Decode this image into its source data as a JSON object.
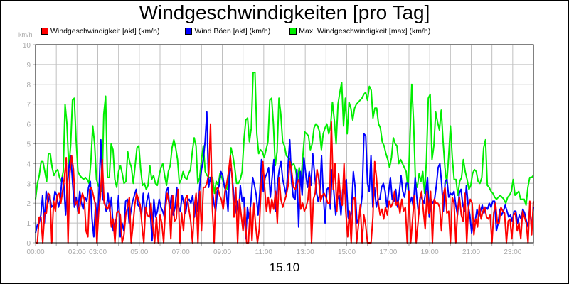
{
  "header": {
    "title": "Windgeschwindigkeiten [pro Tag]",
    "y_unit": "km/h"
  },
  "legend": [
    {
      "label": "Windgeschwindigkeit [akt] (km/h)",
      "color": "#ff0000"
    },
    {
      "label": "Wind Böen [akt] (km/h)",
      "color": "#0000ff"
    },
    {
      "label": "Max. Windgeschwindigkeit [max] (km/h)",
      "color": "#00ee00"
    }
  ],
  "footer": {
    "date_label": "15.10"
  },
  "chart_data": {
    "type": "line",
    "title": "Windgeschwindigkeiten [pro Tag]",
    "xlabel": "15.10",
    "ylabel": "km/h",
    "ylim": [
      0,
      10
    ],
    "xlim_hours": [
      0,
      24
    ],
    "grid": true,
    "legend_position": "top",
    "y_ticks": [
      "0",
      "1",
      "2",
      "3",
      "4",
      "5",
      "6",
      "7",
      "8",
      "9",
      "10"
    ],
    "x_tick_labels": [
      {
        "hour": 0,
        "label": "00:00"
      },
      {
        "hour": 2,
        "label": "02:00"
      },
      {
        "hour": 3,
        "label": "03:00"
      },
      {
        "hour": 5,
        "label": "05:00"
      },
      {
        "hour": 7,
        "label": "07:00"
      },
      {
        "hour": 9,
        "label": "09:00"
      },
      {
        "hour": 11,
        "label": "11:00"
      },
      {
        "hour": 13,
        "label": "13:00"
      },
      {
        "hour": 15,
        "label": "15:00"
      },
      {
        "hour": 17,
        "label": "17:00"
      },
      {
        "hour": 19,
        "label": "19:00"
      },
      {
        "hour": 21,
        "label": "21:00"
      },
      {
        "hour": 23,
        "label": "23:00"
      }
    ],
    "x_step_hours": 0.25,
    "series": [
      {
        "name": "Max. Windgeschwindigkeit [max] (km/h)",
        "color": "#00ee00",
        "values": [
          2.2,
          3.0,
          3.4,
          4.1,
          4.1,
          3.6,
          3.1,
          4.5,
          4.5,
          3.8,
          3.4,
          3.6,
          3.7,
          3.3,
          3.1,
          3.6,
          7.0,
          6.0,
          3.8,
          4.9,
          7.2,
          7.3,
          5.2,
          3.6,
          3.4,
          3.3,
          3.2,
          3.3,
          3.2,
          3.0,
          4.1,
          5.9,
          5.0,
          3.2,
          2.9,
          2.7,
          2.6,
          6.5,
          7.4,
          3.3,
          3.3,
          5.0,
          4.7,
          3.2,
          2.8,
          3.6,
          3.9,
          3.5,
          3.0,
          3.1,
          4.6,
          4.1,
          3.8,
          3.0,
          3.9,
          4.8,
          4.9,
          3.7,
          2.9,
          3.0,
          2.7,
          2.9,
          3.9,
          3.2,
          3.4,
          3.0,
          2.9,
          3.4,
          3.8,
          4.0,
          3.4,
          2.9,
          3.6,
          3.9,
          4.8,
          5.2,
          4.8,
          4.2,
          3.0,
          3.2,
          3.6,
          3.3,
          3.2,
          3.5,
          3.7,
          4.6,
          5.3,
          4.9,
          3.0,
          3.3,
          4.2,
          4.9,
          3.6,
          3.4,
          3.3,
          3.3,
          3.3,
          2.5,
          3.1,
          2.9,
          3.5,
          3.3,
          3.0,
          2.9,
          2.7,
          3.6,
          4.8,
          4.4,
          3.8,
          3.0,
          3.0,
          3.2,
          3.6,
          5.2,
          6.2,
          6.3,
          5.1,
          5.8,
          8.6,
          8.6,
          5.5,
          4.5,
          4.7,
          4.6,
          4.3,
          4.7,
          5.1,
          7.2,
          7.3,
          6.0,
          3.9,
          4.6,
          7.3,
          6.5,
          5.1,
          4.9,
          4.4,
          4.3,
          4.2,
          3.9,
          4.0,
          3.7,
          3.1,
          3.8,
          3.2,
          4.4,
          5.6,
          5.5,
          5.4,
          4.7,
          5.0,
          5.8,
          6.0,
          5.9,
          5.6,
          4.7,
          5.5,
          5.8,
          6.0,
          5.5,
          5.9,
          7.1,
          6.2,
          5.0,
          7.0,
          7.6,
          8.1,
          5.9,
          7.3,
          5.5,
          7.1,
          6.8,
          6.2,
          6.8,
          7.0,
          7.1,
          7.2,
          7.3,
          7.5,
          7.6,
          7.2,
          7.9,
          7.7,
          6.3,
          6.8,
          6.8,
          6.0,
          5.8,
          5.1,
          4.9,
          4.5,
          4.2,
          3.8,
          4.3,
          5.3,
          5.0,
          4.9,
          4.0,
          4.2,
          4.0,
          3.8,
          3.6,
          2.7,
          5.2,
          8.0,
          6.1,
          3.1,
          2.8,
          3.5,
          3.1,
          3.6,
          2.5,
          4.2,
          7.3,
          7.5,
          4.2,
          4.9,
          6.6,
          6.1,
          5.7,
          6.7,
          5.1,
          3.8,
          3.0,
          4.3,
          5.9,
          4.3,
          3.2,
          3.2,
          2.4,
          3.1,
          3.3,
          4.2,
          3.6,
          3.2,
          2.7,
          2.9,
          3.5,
          3.7,
          3.6,
          3.1,
          3.0,
          3.3,
          4.8,
          5.2,
          2.9,
          2.8,
          2.6,
          2.5,
          2.3,
          2.2,
          2.3,
          2.4,
          2.3,
          2.2,
          2.0,
          2.3,
          2.4,
          2.6,
          3.2,
          2.4,
          2.5,
          2.6,
          2.2,
          2.2,
          2.2,
          1.9,
          2.8,
          3.3,
          3.3,
          3.4
        ]
      },
      {
        "name": "Wind Böen [akt] (km/h)",
        "color": "#0000ff",
        "values": [
          0.5,
          0.9,
          1.0,
          1.4,
          2.4,
          1.0,
          2.6,
          2.0,
          2.4,
          1.8,
          1.9,
          2.6,
          2.4,
          1.8,
          2.2,
          3.3,
          3.0,
          1.4,
          2.9,
          3.9,
          4.4,
          3.0,
          1.8,
          2.3,
          1.6,
          2.6,
          2.0,
          1.7,
          2.3,
          2.1,
          2.8,
          3.1,
          1.2,
          0.3,
          2.0,
          0.8,
          2.8,
          5.2,
          2.2,
          2.1,
          1.6,
          2.5,
          1.6,
          2.3,
          0.6,
          1.0,
          1.3,
          2.4,
          0.3,
          1.0,
          0.6,
          2.1,
          2.2,
          1.0,
          1.6,
          2.1,
          2.4,
          2.7,
          1.9,
          1.8,
          1.4,
          2.5,
          1.3,
          2.1,
          2.5,
          1.6,
          0.1,
          2.2,
          1.3,
          1.6,
          2.2,
          1.8,
          1.6,
          1.3,
          2.6,
          2.8,
          1.7,
          2.4,
          1.4,
          1.8,
          2.8,
          1.8,
          1.6,
          2.4,
          2.0,
          1.5,
          2.1,
          2.2,
          2.0,
          2.4,
          1.3,
          2.3,
          1.6,
          2.9,
          3.7,
          4.2,
          5.1,
          6.6,
          2.8,
          3.3,
          2.8,
          2.0,
          1.6,
          2.6,
          2.9,
          3.6,
          3.4,
          2.8,
          2.6,
          1.6,
          3.8,
          3.6,
          2.7,
          1.5,
          2.1,
          1.4,
          2.9,
          2.1,
          2.3,
          0.2,
          1.8,
          1.2,
          2.1,
          3.3,
          2.9,
          2.4,
          1.4,
          2.5,
          4.2,
          2.6,
          3.3,
          3.5,
          3.8,
          2.3,
          3.3,
          4.2,
          1.6,
          3.0,
          3.7,
          4.1,
          3.2,
          2.8,
          2.4,
          3.9,
          5.2,
          3.1,
          2.3,
          2.2,
          3.7,
          0.8,
          3.6,
          2.4,
          4.3,
          3.5,
          2.8,
          3.6,
          2.9,
          4.5,
          3.5,
          2.6,
          2.1,
          2.5,
          4.4,
          2.4,
          1.0,
          2.7,
          2.8,
          1.7,
          3.7,
          2.5,
          1.4,
          2.2,
          2.4,
          1.4,
          2.7,
          2.5,
          3.2,
          1.3,
          1.0,
          1.7,
          3.6,
          2.8,
          1.0,
          1.2,
          1.6,
          2.4,
          5.5,
          5.4,
          3.0,
          2.6,
          4.4,
          1.8,
          2.8,
          1.8,
          2.2,
          2.2,
          2.8,
          3.0,
          2.6,
          1.8,
          2.6,
          3.3,
          2.2,
          2.1,
          2.7,
          1.8,
          2.5,
          3.4,
          2.6,
          2.3,
          3.0,
          3.0,
          2.0,
          2.3,
          1.8,
          3.3,
          2.2,
          1.4,
          2.4,
          2.2,
          2.0,
          2.6,
          3.3,
          1.3,
          2.2,
          2.0,
          2.2,
          2.9,
          3.8,
          4.0,
          3.0,
          1.6,
          3.1,
          3.2,
          2.3,
          2.5,
          2.4,
          2.6,
          1.9,
          1.4,
          2.5,
          2.7,
          1.9,
          1.6,
          2.9,
          1.9,
          1.4,
          0.5,
          1.1,
          1.1,
          1.7,
          1.3,
          1.6,
          1.9,
          1.5,
          1.8,
          1.7,
          2.0,
          1.8,
          2.1,
          2.1,
          0.6,
          1.0,
          1.7,
          1.4,
          1.6,
          1.9,
          1.6,
          1.3,
          1.4,
          1.1,
          1.6,
          1.6,
          1.0,
          1.4,
          1.2,
          1.7,
          1.5,
          1.1,
          0.8,
          1.9,
          0.6,
          1.8
        ]
      },
      {
        "name": "Windgeschwindigkeit [akt] (km/h)",
        "color": "#ff0000",
        "values": [
          0.0,
          0.0,
          1.3,
          1.3,
          0.0,
          1.5,
          1.5,
          2.5,
          2.4,
          0.0,
          2.1,
          1.6,
          2.4,
          2.5,
          2.0,
          2.6,
          3.3,
          4.3,
          0.0,
          3.5,
          4.4,
          3.7,
          1.9,
          2.1,
          1.5,
          2.1,
          2.5,
          2.2,
          0.6,
          0.3,
          2.7,
          2.8,
          2.4,
          2.0,
          0.0,
          1.6,
          2.4,
          4.2,
          2.0,
          1.8,
          1.7,
          2.0,
          0.8,
          1.2,
          0.0,
          1.5,
          1.6,
          1.4,
          0.0,
          0.4,
          1.4,
          1.8,
          2.3,
          0.0,
          0.9,
          1.9,
          2.5,
          2.2,
          1.9,
          0.9,
          0.0,
          1.8,
          1.4,
          1.3,
          2.0,
          0.8,
          0.0,
          1.3,
          0.0,
          1.4,
          1.0,
          0.0,
          1.7,
          2.5,
          2.0,
          0.2,
          2.4,
          1.1,
          1.2,
          2.7,
          0.0,
          1.5,
          0.6,
          2.2,
          2.4,
          1.7,
          1.1,
          0.0,
          1.8,
          2.5,
          0.0,
          2.6,
          0.6,
          2.8,
          2.8,
          3.0,
          3.5,
          6.0,
          1.7,
          0.0,
          2.7,
          2.8,
          2.4,
          2.2,
          1.7,
          2.6,
          3.0,
          3.6,
          4.4,
          3.3,
          1.3,
          2.8,
          0.0,
          2.2,
          1.4,
          0.6,
          1.8,
          0.0,
          0.0,
          1.8,
          0.1,
          2.0,
          0.9,
          0.0,
          0.7,
          2.8,
          4.1,
          2.8,
          1.6,
          2.3,
          1.5,
          2.2,
          1.7,
          2.6,
          1.0,
          3.3,
          2.2,
          1.8,
          2.1,
          2.4,
          2.9,
          4.1,
          3.6,
          2.8,
          2.7,
          3.0,
          3.2,
          1.7,
          2.0,
          1.6,
          1.8,
          2.2,
          3.3,
          0.0,
          2.2,
          2.5,
          3.7,
          3.2,
          2.1,
          2.4,
          2.5,
          2.3,
          2.0,
          2.0,
          6.1,
          2.7,
          4.0,
          1.6,
          3.5,
          2.3,
          1.9,
          4.0,
          1.6,
          0.3,
          1.6,
          0.0,
          2.2,
          2.3,
          0.0,
          0.9,
          1.9,
          0.0,
          1.4,
          0.9,
          0.0,
          0.0,
          0.0,
          1.3,
          4.1,
          3.3,
          2.0,
          1.4,
          1.7,
          1.2,
          1.8,
          1.4,
          2.1,
          1.8,
          2.0,
          2.6,
          1.9,
          2.1,
          1.5,
          2.2,
          1.6,
          1.8,
          0.0,
          2.6,
          0.0,
          1.2,
          2.4,
          0.0,
          1.0,
          2.2,
          2.6,
          1.6,
          0.7,
          2.6,
          1.5,
          2.6,
          0.0,
          2.2,
          2.0,
          2.0,
          1.8,
          0.6,
          2.4,
          2.8,
          1.5,
          1.6,
          0.0,
          2.3,
          2.0,
          0.0,
          1.7,
          2.3,
          1.4,
          1.1,
          2.5,
          0.0,
          1.8,
          2.2,
          2.0,
          0.4,
          1.2,
          0.8,
          1.9,
          1.2,
          1.6,
          1.8,
          1.3,
          1.2,
          1.4,
          0.0,
          1.5,
          2.0,
          1.0,
          1.0,
          1.8,
          1.6,
          1.5,
          0.0,
          1.1,
          1.2,
          0.2,
          1.4,
          1.5,
          0.6,
          1.0,
          0.2,
          1.6,
          1.3,
          1.0,
          0.0,
          2.1,
          0.4,
          2.1
        ]
      }
    ]
  }
}
